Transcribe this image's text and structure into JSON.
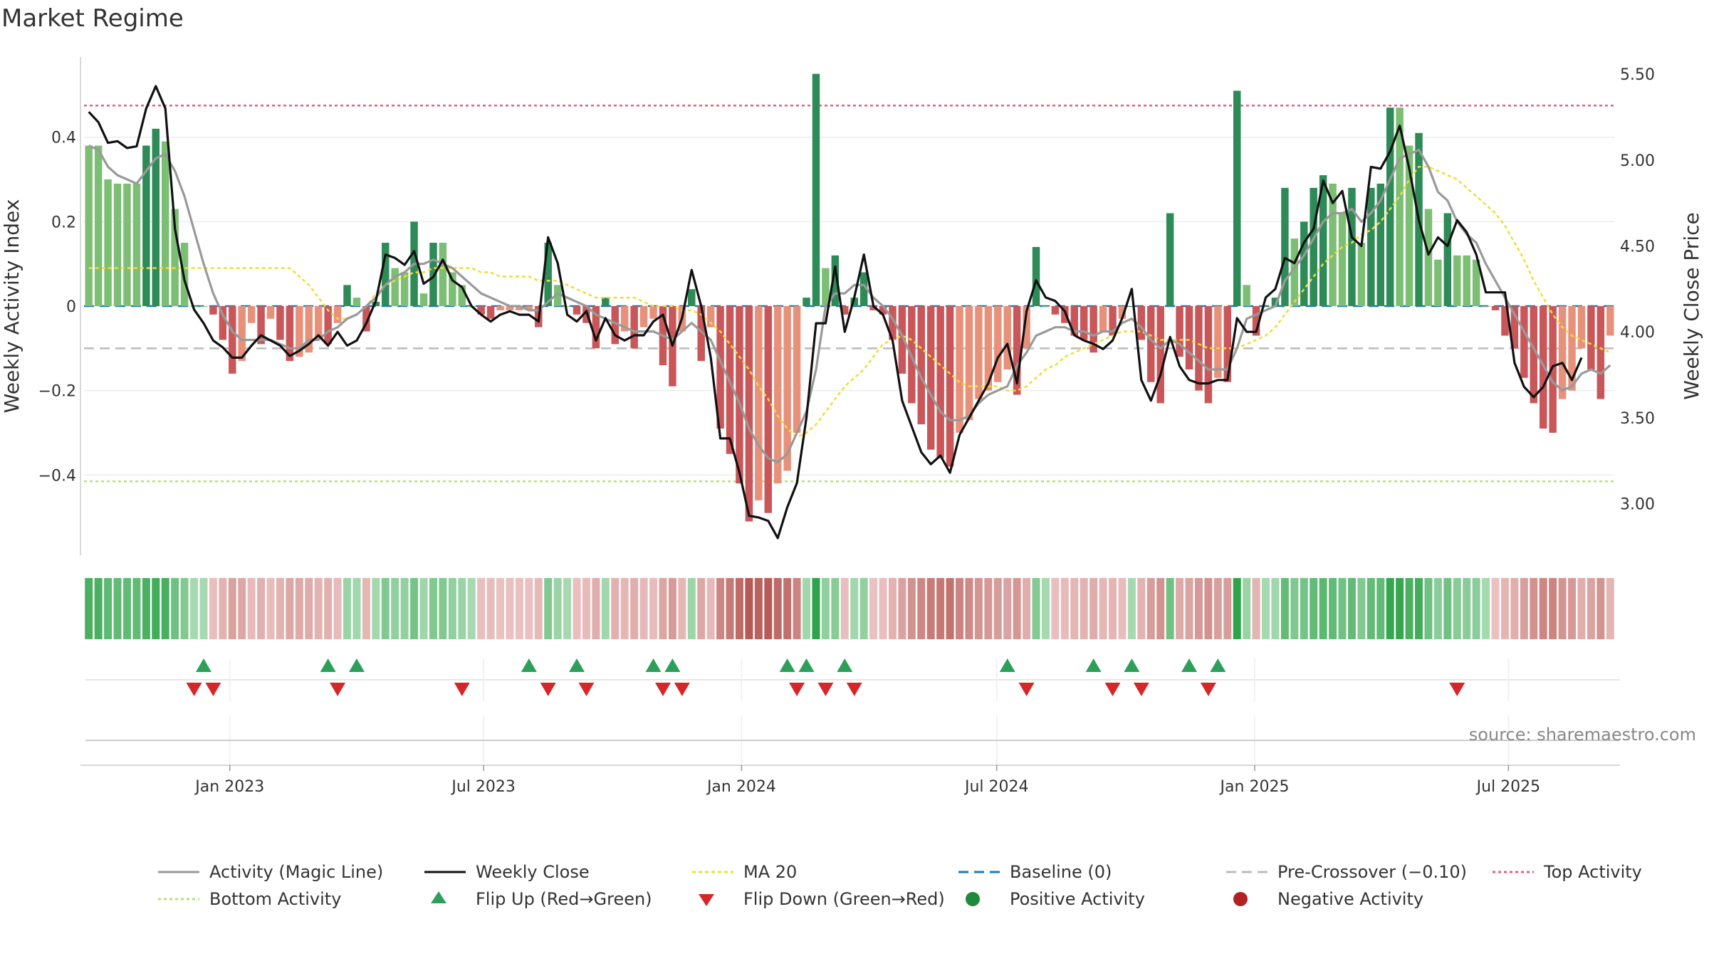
{
  "chart_data": {
    "type": "bar",
    "title": "Market Regime",
    "ylabel_left": "Weekly Activity Index",
    "ylabel_right": "Weekly Close Price",
    "ylim_left": [
      -0.59,
      0.59
    ],
    "ylim_right": [
      2.7,
      5.6
    ],
    "yticks_left": [
      0.4,
      0.2,
      0,
      -0.2,
      -0.4
    ],
    "ytick_labels_left": [
      "0.4",
      "0.2",
      "0",
      "−0.2",
      "−0.4"
    ],
    "yticks_right": [
      5.5,
      5.0,
      4.5,
      4.0,
      3.5,
      3.0
    ],
    "ytick_labels_right": [
      "5.50",
      "5.00",
      "4.50",
      "4.00",
      "3.50",
      "3.00"
    ],
    "x_start": "2022-09-19",
    "x_end": "2025-09-15",
    "xticks": [
      "2023-01-01",
      "2023-07-01",
      "2024-01-01",
      "2024-07-01",
      "2025-01-01",
      "2025-07-01"
    ],
    "xtick_labels": [
      "Jan 2023",
      "Jul 2023",
      "Jan 2024",
      "Jul 2024",
      "Jan 2025",
      "Jul 2025"
    ],
    "reference_lines": {
      "baseline": 0,
      "pre_crossover": -0.1,
      "top_activity": 0.475,
      "bottom_activity": -0.415
    },
    "colors": {
      "pos_strong": "#2e8b57",
      "pos_weak": "#7cbf74",
      "neg_strong": "#c9575a",
      "neg_weak": "#e8917a",
      "close": "#111111",
      "magic": "#999999",
      "ma20": "#f0dc3c",
      "baseline": "#1f77b4",
      "pre": "#bbbbbb",
      "top": "#e0607e",
      "bottom": "#b5e07a",
      "flip_up": "#2ca05a",
      "flip_down": "#d62728",
      "pos_dot": "#1e8b3c",
      "neg_dot": "#b22222"
    },
    "activity": [
      0.38,
      0.38,
      0.3,
      0.29,
      0.29,
      0.29,
      0.38,
      0.42,
      0.39,
      0.23,
      0.15,
      0.0,
      0.0,
      -0.02,
      -0.08,
      -0.16,
      -0.13,
      -0.04,
      -0.09,
      -0.03,
      -0.08,
      -0.13,
      -0.12,
      -0.11,
      -0.08,
      -0.09,
      -0.04,
      0.05,
      0.02,
      -0.06,
      0.01,
      0.15,
      0.09,
      0.08,
      0.2,
      0.03,
      0.15,
      0.15,
      0.08,
      0.05,
      0.0,
      -0.02,
      -0.03,
      -0.01,
      -0.01,
      -0.01,
      -0.01,
      -0.05,
      0.15,
      0.05,
      0.0,
      -0.02,
      -0.04,
      -0.1,
      0.02,
      -0.09,
      -0.06,
      -0.1,
      -0.05,
      -0.03,
      -0.14,
      -0.19,
      -0.06,
      0.04,
      -0.13,
      -0.05,
      -0.29,
      -0.35,
      -0.42,
      -0.51,
      -0.46,
      -0.49,
      -0.42,
      -0.39,
      -0.3,
      0.02,
      0.55,
      0.09,
      0.12,
      -0.02,
      0.02,
      0.08,
      -0.01,
      -0.02,
      -0.08,
      -0.16,
      -0.23,
      -0.28,
      -0.34,
      -0.36,
      -0.38,
      -0.3,
      -0.27,
      -0.22,
      -0.2,
      -0.18,
      -0.15,
      -0.21,
      -0.1,
      0.14,
      0.0,
      -0.02,
      -0.04,
      -0.07,
      -0.08,
      -0.11,
      -0.06,
      -0.07,
      -0.03,
      0.0,
      -0.08,
      -0.18,
      -0.23,
      0.22,
      -0.12,
      -0.15,
      -0.2,
      -0.23,
      -0.17,
      -0.18,
      0.51,
      0.05,
      -0.07,
      0.0,
      0.02,
      0.28,
      0.16,
      0.2,
      0.28,
      0.31,
      0.29,
      0.22,
      0.28,
      0.15,
      0.28,
      0.29,
      0.47,
      0.47,
      0.38,
      0.41,
      0.23,
      0.11,
      0.22,
      0.12,
      0.12,
      0.11,
      0.0,
      -0.01,
      -0.07,
      -0.1,
      -0.17,
      -0.23,
      -0.29,
      -0.3,
      -0.22,
      -0.2,
      -0.1,
      -0.15,
      -0.22,
      -0.07
    ],
    "weekly_close": [
      5.28,
      5.22,
      5.1,
      5.11,
      5.07,
      5.08,
      5.3,
      5.43,
      5.3,
      4.6,
      4.3,
      4.13,
      4.05,
      3.95,
      3.91,
      3.85,
      3.85,
      3.92,
      3.98,
      3.95,
      3.92,
      3.86,
      3.89,
      3.93,
      3.98,
      3.92,
      4.0,
      3.92,
      3.95,
      4.05,
      4.18,
      4.45,
      4.43,
      4.39,
      4.47,
      4.28,
      4.32,
      4.42,
      4.3,
      4.26,
      4.15,
      4.1,
      4.06,
      4.1,
      4.12,
      4.1,
      4.1,
      4.06,
      4.55,
      4.4,
      4.1,
      4.06,
      4.12,
      3.95,
      4.08,
      3.98,
      3.95,
      3.98,
      3.98,
      4.06,
      4.1,
      3.92,
      4.08,
      4.36,
      4.15,
      3.85,
      3.38,
      3.38,
      3.18,
      2.93,
      2.92,
      2.9,
      2.8,
      2.98,
      3.12,
      3.5,
      4.05,
      4.05,
      4.38,
      4.0,
      4.2,
      4.45,
      4.15,
      4.1,
      3.95,
      3.6,
      3.45,
      3.3,
      3.23,
      3.28,
      3.18,
      3.4,
      3.5,
      3.6,
      3.7,
      3.85,
      3.93,
      3.7,
      4.12,
      4.3,
      4.2,
      4.18,
      4.12,
      3.98,
      3.95,
      3.93,
      3.9,
      3.95,
      4.08,
      4.25,
      3.72,
      3.6,
      3.75,
      3.97,
      3.8,
      3.72,
      3.7,
      3.7,
      3.72,
      3.72,
      4.08,
      4.0,
      4.0,
      4.2,
      4.25,
      4.43,
      4.4,
      4.52,
      4.6,
      4.88,
      4.75,
      4.82,
      4.55,
      4.5,
      4.96,
      4.95,
      5.05,
      5.2,
      4.95,
      4.65,
      4.45,
      4.55,
      4.5,
      4.65,
      4.58,
      4.45,
      4.23,
      4.23,
      4.23,
      3.82,
      3.68,
      3.62,
      3.68,
      3.8,
      3.82,
      3.72,
      3.85
    ],
    "magic_line": [
      0.38,
      0.37,
      0.33,
      0.31,
      0.3,
      0.29,
      0.32,
      0.35,
      0.36,
      0.32,
      0.26,
      0.18,
      0.1,
      0.03,
      -0.02,
      -0.06,
      -0.08,
      -0.08,
      -0.08,
      -0.08,
      -0.09,
      -0.1,
      -0.1,
      -0.08,
      -0.08,
      -0.06,
      -0.05,
      -0.03,
      -0.02,
      0.0,
      0.02,
      0.05,
      0.07,
      0.08,
      0.1,
      0.1,
      0.11,
      0.1,
      0.09,
      0.07,
      0.05,
      0.03,
      0.02,
      0.01,
      0.0,
      0.0,
      -0.01,
      -0.01,
      0.01,
      0.03,
      0.02,
      0.01,
      0.0,
      -0.02,
      -0.03,
      -0.04,
      -0.05,
      -0.06,
      -0.06,
      -0.06,
      -0.07,
      -0.08,
      -0.06,
      -0.04,
      -0.06,
      -0.08,
      -0.13,
      -0.18,
      -0.23,
      -0.29,
      -0.33,
      -0.36,
      -0.37,
      -0.35,
      -0.3,
      -0.25,
      -0.15,
      0.0,
      0.03,
      0.03,
      0.05,
      0.05,
      0.02,
      0.0,
      -0.03,
      -0.07,
      -0.12,
      -0.17,
      -0.21,
      -0.25,
      -0.27,
      -0.27,
      -0.26,
      -0.23,
      -0.21,
      -0.2,
      -0.19,
      -0.14,
      -0.11,
      -0.07,
      -0.06,
      -0.05,
      -0.05,
      -0.06,
      -0.06,
      -0.07,
      -0.06,
      -0.06,
      -0.04,
      -0.03,
      -0.05,
      -0.08,
      -0.1,
      -0.08,
      -0.09,
      -0.11,
      -0.13,
      -0.15,
      -0.15,
      -0.15,
      -0.1,
      -0.03,
      -0.02,
      -0.01,
      0.0,
      0.06,
      0.09,
      0.12,
      0.16,
      0.2,
      0.22,
      0.22,
      0.23,
      0.2,
      0.22,
      0.25,
      0.3,
      0.35,
      0.36,
      0.37,
      0.33,
      0.27,
      0.25,
      0.2,
      0.17,
      0.15,
      0.1,
      0.06,
      0.02,
      -0.02,
      -0.06,
      -0.1,
      -0.14,
      -0.18,
      -0.2,
      -0.19,
      -0.16,
      -0.15,
      -0.16,
      -0.14
    ],
    "ma20": [
      0.09,
      0.09,
      0.09,
      0.09,
      0.09,
      0.09,
      0.09,
      0.09,
      0.09,
      0.09,
      0.09,
      0.09,
      0.09,
      0.09,
      0.09,
      0.09,
      0.09,
      0.09,
      0.09,
      0.09,
      0.09,
      0.09,
      0.07,
      0.05,
      0.02,
      -0.01,
      -0.03,
      -0.03,
      -0.02,
      0.0,
      0.03,
      0.05,
      0.06,
      0.07,
      0.08,
      0.08,
      0.09,
      0.09,
      0.09,
      0.09,
      0.09,
      0.08,
      0.08,
      0.07,
      0.07,
      0.07,
      0.07,
      0.06,
      0.06,
      0.06,
      0.05,
      0.04,
      0.03,
      0.02,
      0.02,
      0.02,
      0.02,
      0.02,
      0.01,
      0.0,
      0.0,
      0.0,
      -0.01,
      -0.01,
      -0.02,
      -0.04,
      -0.06,
      -0.09,
      -0.12,
      -0.15,
      -0.19,
      -0.22,
      -0.26,
      -0.29,
      -0.31,
      -0.3,
      -0.28,
      -0.25,
      -0.22,
      -0.19,
      -0.17,
      -0.15,
      -0.12,
      -0.09,
      -0.08,
      -0.07,
      -0.08,
      -0.1,
      -0.12,
      -0.14,
      -0.16,
      -0.18,
      -0.19,
      -0.19,
      -0.19,
      -0.19,
      -0.2,
      -0.2,
      -0.19,
      -0.17,
      -0.15,
      -0.14,
      -0.12,
      -0.11,
      -0.1,
      -0.09,
      -0.08,
      -0.07,
      -0.06,
      -0.06,
      -0.06,
      -0.07,
      -0.08,
      -0.08,
      -0.08,
      -0.08,
      -0.09,
      -0.1,
      -0.1,
      -0.1,
      -0.1,
      -0.09,
      -0.08,
      -0.07,
      -0.05,
      -0.02,
      0.01,
      0.04,
      0.07,
      0.1,
      0.12,
      0.14,
      0.15,
      0.17,
      0.18,
      0.2,
      0.23,
      0.26,
      0.3,
      0.33,
      0.33,
      0.32,
      0.31,
      0.3,
      0.28,
      0.26,
      0.24,
      0.22,
      0.19,
      0.15,
      0.11,
      0.06,
      0.02,
      -0.02,
      -0.05,
      -0.07,
      -0.08,
      -0.09,
      -0.1,
      -0.11
    ],
    "flip_up_weeks": [
      12,
      25,
      28,
      46,
      51,
      59,
      61,
      73,
      75,
      79,
      96,
      105,
      109,
      115,
      118
    ],
    "flip_down_weeks": [
      11,
      13,
      26,
      39,
      48,
      52,
      60,
      62,
      74,
      77,
      80,
      98,
      107,
      110,
      117,
      143
    ],
    "x_labels": [
      "Jan 2023",
      "Jul 2023",
      "Jan 2024",
      "Jul 2024",
      "Jan 2025",
      "Jul 2025"
    ]
  },
  "source": "source: sharemaestro.com",
  "legend": [
    {
      "key": "magic",
      "label": "Activity (Magic Line)"
    },
    {
      "key": "close",
      "label": "Weekly Close"
    },
    {
      "key": "ma20",
      "label": "MA 20"
    },
    {
      "key": "baseline",
      "label": "Baseline (0)"
    },
    {
      "key": "pre",
      "label": "Pre-Crossover (−0.10)"
    },
    {
      "key": "top",
      "label": "Top Activity"
    },
    {
      "key": "bottom",
      "label": "Bottom Activity"
    },
    {
      "key": "flipup",
      "label": "Flip Up (Red→Green)"
    },
    {
      "key": "flipdown",
      "label": "Flip Down (Green→Red)"
    },
    {
      "key": "posdot",
      "label": "Positive Activity"
    },
    {
      "key": "negdot",
      "label": "Negative Activity"
    }
  ]
}
